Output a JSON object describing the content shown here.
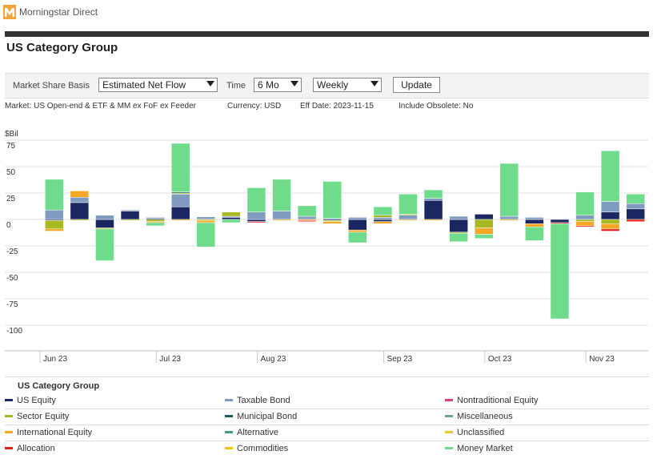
{
  "app": {
    "title": "Morningstar Direct"
  },
  "page": {
    "title": "US Category Group"
  },
  "controls": {
    "basis_label": "Market Share Basis",
    "basis_value": "Estimated Net Flow",
    "time_label": "Time",
    "time_value": "6 Mo",
    "frequency_value": "Weekly",
    "update_label": "Update"
  },
  "meta": {
    "market": "Market: US Open-end & ETF & MM ex FoF ex Feeder",
    "currency": "Currency: USD",
    "eff_date": "Eff Date: 2023-11-15",
    "include_obsolete": "Include Obsolete: No"
  },
  "colors": {
    "us_equity": "#1a2760",
    "taxable_bond": "#7f9cc0",
    "nontraditional_equity": "#e0457a",
    "sector_equity": "#a8b820",
    "municipal_bond": "#1b5a5e",
    "miscellaneous": "#6aab85",
    "international_equity": "#f5a623",
    "alternative": "#3a9e86",
    "unclassified": "#e7c640",
    "allocation": "#e32119",
    "commodities": "#f2c500",
    "money_market": "#6fdc8c"
  },
  "chart_data": {
    "type": "bar",
    "stacked": true,
    "ylabel": "$Bil",
    "ylim": [
      -123,
      76
    ],
    "yticks": [
      75,
      50,
      25,
      0,
      -25,
      -50,
      -75,
      -100
    ],
    "x_tick_labels": [
      "Jun 23",
      "Jul 23",
      "Aug 23",
      "Sep 23",
      "Oct 23",
      "Nov 23"
    ],
    "x_tick_weeks": [
      0,
      4.6,
      8.6,
      13.6,
      17.6,
      21.6
    ],
    "weeks": 24,
    "series": [
      {
        "name": "US Equity",
        "color_key": "us_equity",
        "values": [
          -1,
          16,
          -8,
          8,
          1,
          12,
          0.5,
          2,
          -2,
          0,
          0,
          -1,
          -10,
          -2,
          0,
          18,
          -12,
          5,
          0,
          -4,
          -3,
          0,
          7,
          10
        ]
      },
      {
        "name": "Taxable Bond",
        "color_key": "taxable_bond",
        "values": [
          9,
          5,
          4,
          1,
          1,
          12,
          2,
          1,
          7,
          8,
          3,
          1,
          2,
          2,
          4,
          2,
          3,
          0,
          3,
          2,
          0,
          4,
          10,
          5
        ]
      },
      {
        "name": "Sector Equity",
        "color_key": "sector_equity",
        "values": [
          -8,
          -1,
          -1,
          -1,
          -2,
          1,
          -1,
          4,
          0,
          0,
          0,
          -1,
          0,
          2,
          1,
          0,
          -1,
          -8,
          0,
          0,
          0,
          -2,
          -4,
          0
        ]
      },
      {
        "name": "International Equity",
        "color_key": "international_equity",
        "values": [
          -2,
          6,
          0,
          0,
          -1,
          -1,
          -2,
          0,
          0,
          -1,
          -1,
          -2,
          -2,
          -2,
          -1,
          -1,
          0,
          -6,
          -1,
          -3,
          0,
          -4,
          -5,
          0
        ]
      },
      {
        "name": "Allocation",
        "color_key": "allocation",
        "values": [
          0,
          0,
          0,
          0,
          0,
          0,
          0,
          0,
          -1,
          0,
          -1,
          0,
          0,
          0,
          0,
          0,
          0,
          0,
          0,
          0,
          -1,
          -1,
          -2,
          -2
        ]
      },
      {
        "name": "Municipal Bond",
        "color_key": "municipal_bond",
        "values": [
          0,
          0,
          0,
          0,
          0,
          1,
          0,
          0,
          0,
          0,
          0,
          0,
          0,
          0,
          0,
          0,
          0,
          0,
          0,
          0,
          0,
          0,
          0,
          0
        ]
      },
      {
        "name": "Money Market",
        "color_key": "money_market",
        "values": [
          29,
          0,
          -30,
          0,
          -3,
          46,
          -23,
          -3,
          23,
          30,
          10,
          35,
          -10,
          8,
          19,
          8,
          -8,
          -4,
          50,
          -13,
          -90,
          22,
          48,
          9
        ]
      }
    ],
    "legend": {
      "title": "US Category Group",
      "items": [
        {
          "label": "US Equity",
          "color_key": "us_equity"
        },
        {
          "label": "Taxable Bond",
          "color_key": "taxable_bond"
        },
        {
          "label": "Nontraditional Equity",
          "color_key": "nontraditional_equity"
        },
        {
          "label": "Sector Equity",
          "color_key": "sector_equity"
        },
        {
          "label": "Municipal Bond",
          "color_key": "municipal_bond"
        },
        {
          "label": "Miscellaneous",
          "color_key": "miscellaneous"
        },
        {
          "label": "International Equity",
          "color_key": "international_equity"
        },
        {
          "label": "Alternative",
          "color_key": "alternative"
        },
        {
          "label": "Unclassified",
          "color_key": "unclassified"
        },
        {
          "label": "Allocation",
          "color_key": "allocation"
        },
        {
          "label": "Commodities",
          "color_key": "commodities"
        },
        {
          "label": "Money Market",
          "color_key": "money_market"
        }
      ]
    }
  }
}
